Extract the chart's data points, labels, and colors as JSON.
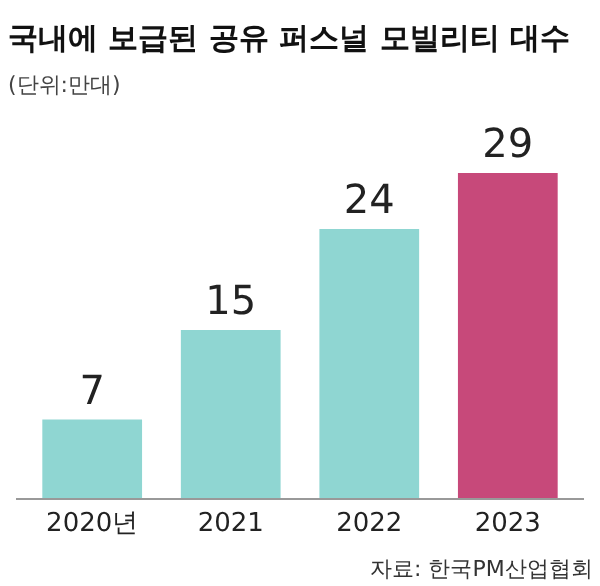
{
  "chart_data": {
    "type": "bar",
    "title": "국내에 보급된 공유 퍼스널 모빌리티 대수",
    "subtitle": "(단위:만대)",
    "categories": [
      "2020년",
      "2021",
      "2022",
      "2023"
    ],
    "values": [
      7,
      15,
      24,
      29
    ],
    "colors": [
      "#8fd6d2",
      "#8fd6d2",
      "#8fd6d2",
      "#c7497a"
    ],
    "data_labels": true,
    "legend": false,
    "annotations": [
      "자료: 한국PM산업협회"
    ]
  }
}
